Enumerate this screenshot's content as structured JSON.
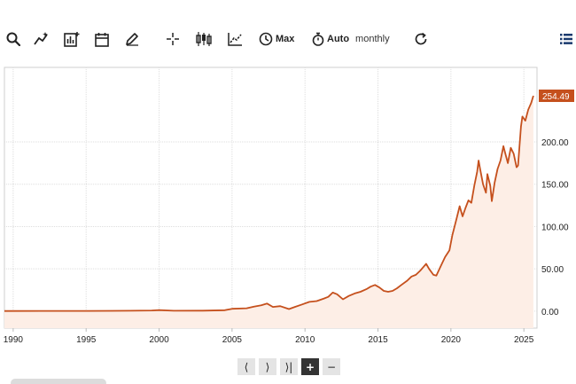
{
  "toolbar": {
    "search_icon": "search-icon",
    "range_label": "Max",
    "interval_label": "Auto",
    "interval_value": "monthly"
  },
  "colors": {
    "line": "#c5501d",
    "area": "#fdeee6",
    "grid": "#dedede",
    "price_badge": "#c5501d"
  },
  "chart_data": {
    "type": "area",
    "title": "",
    "xlabel": "",
    "ylabel": "",
    "x_ticks": [
      "1990",
      "1995",
      "2000",
      "2005",
      "2010",
      "2015",
      "2020",
      "2025"
    ],
    "y_ticks": [
      "0.00",
      "50.00",
      "100.00",
      "150.00",
      "200.00"
    ],
    "xlim": [
      1989.4,
      2025.9
    ],
    "ylim": [
      -20,
      288
    ],
    "last_value": "254.49",
    "grid": true,
    "series": [
      {
        "x": [
          1989.4,
          1992,
          1995,
          1998,
          1999.5,
          2000,
          2001,
          2003,
          2004.5,
          2005,
          2006,
          2006.5,
          2007,
          2007.4,
          2007.8,
          2008.3,
          2008.9,
          2009.3,
          2009.8,
          2010.3,
          2010.8,
          2011.3,
          2011.6,
          2011.9,
          2012.2,
          2012.6,
          2013,
          2013.4,
          2013.8,
          2014.2,
          2014.5,
          2014.8,
          2015.1,
          2015.4,
          2015.7,
          2016.0,
          2016.3,
          2016.6,
          2017.0,
          2017.3,
          2017.6,
          2017.9,
          2018.1,
          2018.3,
          2018.5,
          2018.8,
          2019.0,
          2019.3,
          2019.6,
          2019.9,
          2020.1,
          2020.4,
          2020.6,
          2020.8,
          2021.0,
          2021.2,
          2021.4,
          2021.6,
          2021.8,
          2021.9,
          2022.0,
          2022.2,
          2022.4,
          2022.5,
          2022.7,
          2022.8,
          2023.0,
          2023.2,
          2023.4,
          2023.6,
          2023.7,
          2023.9,
          2024.1,
          2024.3,
          2024.5,
          2024.6,
          2024.8,
          2024.9,
          2025.1,
          2025.3,
          2025.5,
          2025.65
        ],
        "y": [
          0.2,
          0.3,
          0.3,
          0.5,
          0.9,
          1.3,
          0.5,
          0.6,
          1.2,
          2.8,
          3.5,
          5.5,
          7,
          9,
          5,
          6,
          2.5,
          5,
          8,
          11,
          12,
          15,
          17,
          22,
          20,
          14,
          18,
          21,
          23,
          26,
          29,
          31,
          28,
          24,
          23,
          24,
          27,
          31,
          36,
          41,
          43,
          48,
          52,
          56,
          50,
          43,
          42,
          53,
          64,
          72,
          90,
          110,
          124,
          112,
          122,
          131,
          128,
          148,
          165,
          178,
          168,
          150,
          140,
          162,
          148,
          130,
          152,
          168,
          178,
          195,
          188,
          175,
          193,
          186,
          170,
          172,
          218,
          230,
          225,
          238,
          246,
          254.49
        ]
      }
    ]
  },
  "pager": {
    "prev": "⟨",
    "next": "⟩",
    "end": "⟩|",
    "zoom_in": "+",
    "zoom_out": "−"
  }
}
